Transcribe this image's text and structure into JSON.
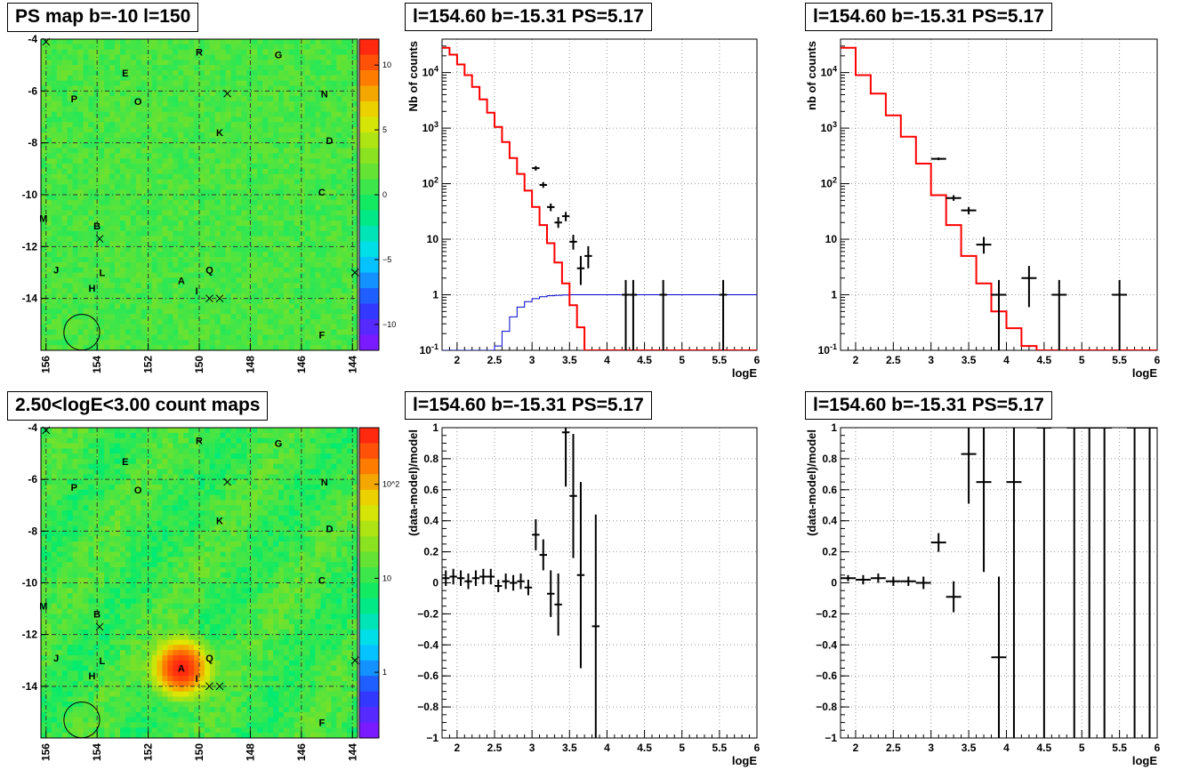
{
  "chart_data": [
    {
      "id": "ps_map",
      "type": "heatmap",
      "title": "PS map b=-10 l=150",
      "x_ticks": [
        "156",
        "154",
        "152",
        "150",
        "148",
        "146",
        "144"
      ],
      "y_ticks": [
        "-4",
        "-6",
        "-8",
        "-10",
        "-12",
        "-14"
      ],
      "xlim": [
        156.2,
        143.8
      ],
      "ylim": [
        -16,
        -4
      ],
      "z_ticks": [
        "10",
        "5",
        "0",
        "−5",
        "−10"
      ],
      "zlim": [
        -12,
        12
      ],
      "background_value": 1.0,
      "colors": {
        "grid": "#333333"
      },
      "labels": [
        {
          "text": "R",
          "l": 150.0,
          "b": -4.5
        },
        {
          "text": "G",
          "l": 146.9,
          "b": -4.6
        },
        {
          "text": "E",
          "l": 152.9,
          "b": -5.3
        },
        {
          "text": "P",
          "l": 154.9,
          "b": -6.3
        },
        {
          "text": "O",
          "l": 152.4,
          "b": -6.4
        },
        {
          "text": "N",
          "l": 145.1,
          "b": -6.1
        },
        {
          "text": "K",
          "l": 149.2,
          "b": -7.6
        },
        {
          "text": "D",
          "l": 144.9,
          "b": -7.9
        },
        {
          "text": "C",
          "l": 145.2,
          "b": -9.9
        },
        {
          "text": "M",
          "l": 156.1,
          "b": -10.9
        },
        {
          "text": "B",
          "l": 154.0,
          "b": -11.2
        },
        {
          "text": "J",
          "l": 155.6,
          "b": -12.9
        },
        {
          "text": "L",
          "l": 153.8,
          "b": -13.0
        },
        {
          "text": "Q",
          "l": 149.6,
          "b": -12.9
        },
        {
          "text": "A",
          "l": 150.7,
          "b": -13.3
        },
        {
          "text": "H",
          "l": 154.2,
          "b": -13.6
        },
        {
          "text": "I",
          "l": 150.1,
          "b": -13.7
        },
        {
          "text": "F",
          "l": 145.2,
          "b": -15.4
        }
      ],
      "crosses": [
        {
          "l": 156.0,
          "b": -4.1
        },
        {
          "l": 148.9,
          "b": -6.1
        },
        {
          "l": 153.9,
          "b": -11.7
        },
        {
          "l": 149.6,
          "b": -14.0
        },
        {
          "l": 149.2,
          "b": -14.0
        },
        {
          "l": 143.9,
          "b": -13.0
        }
      ],
      "circle": {
        "l": 154.6,
        "b": -15.3,
        "r": 0.7
      }
    },
    {
      "id": "spec1",
      "type": "line",
      "title": "l=154.60 b=-15.31 PS=5.17",
      "xlabel": "logE",
      "ylabel": "Nb of counts",
      "xlim": [
        1.8,
        6
      ],
      "ylim": [
        0.1,
        40000
      ],
      "yscale": "log",
      "x_ticks": [
        "2",
        "2.5",
        "3",
        "3.5",
        "4",
        "4.5",
        "5",
        "5.5",
        "6"
      ],
      "y_ticks": [
        "10^-1",
        "1",
        "10",
        "10^2",
        "10^3",
        "10^4"
      ],
      "grid": true,
      "bin_width": 0.1,
      "model_red": [
        28000,
        21000,
        14000,
        9000,
        5500,
        3300,
        1900,
        1050,
        560,
        290,
        150,
        75,
        38,
        18,
        8.5,
        3.8,
        1.6,
        0.65,
        0.26,
        0.1,
        0.1,
        0.1,
        0.1,
        0.1,
        0.1,
        0.1,
        0.1,
        0.1,
        0.1,
        0.1,
        0.1,
        0.1,
        0.1,
        0.1,
        0.1,
        0.1,
        0.1,
        0.1,
        0.1,
        0.1,
        0.1,
        0.1
      ],
      "model_blue": [
        0.1,
        0.1,
        0.1,
        0.1,
        0.1,
        0.1,
        0.1,
        0.12,
        0.22,
        0.4,
        0.6,
        0.75,
        0.85,
        0.92,
        0.96,
        0.98,
        0.99,
        1,
        1,
        1,
        1,
        1,
        1,
        1,
        1,
        1,
        1,
        1,
        1,
        1,
        1,
        1,
        1,
        1,
        1,
        1,
        1,
        1,
        1,
        1,
        1,
        1
      ],
      "data_points": [
        {
          "x": 3.05,
          "y": 190,
          "lo": 172,
          "hi": 208
        },
        {
          "x": 3.15,
          "y": 95,
          "lo": 84,
          "hi": 107
        },
        {
          "x": 3.25,
          "y": 38,
          "lo": 32,
          "hi": 44
        },
        {
          "x": 3.35,
          "y": 20,
          "lo": 16,
          "hi": 25
        },
        {
          "x": 3.45,
          "y": 26,
          "lo": 21,
          "hi": 31
        },
        {
          "x": 3.55,
          "y": 9,
          "lo": 6.5,
          "hi": 12
        },
        {
          "x": 3.65,
          "y": 3,
          "lo": 1.5,
          "hi": 5
        },
        {
          "x": 3.75,
          "y": 5,
          "lo": 3,
          "hi": 7.5
        },
        {
          "x": 4.25,
          "y": 1,
          "lo": 0.1,
          "hi": 1.85
        },
        {
          "x": 4.35,
          "y": 1,
          "lo": 0.1,
          "hi": 1.85
        },
        {
          "x": 4.75,
          "y": 1,
          "lo": 0.1,
          "hi": 1.85
        },
        {
          "x": 5.55,
          "y": 1,
          "lo": 0.1,
          "hi": 1.85
        }
      ],
      "colors": {
        "model": "#ff0000",
        "acceptance": "#0000cc",
        "data": "#000000"
      }
    },
    {
      "id": "spec2",
      "type": "line",
      "title": "l=154.60 b=-15.31 PS=5.17",
      "xlabel": "logE",
      "ylabel": "nb of counts",
      "xlim": [
        1.8,
        6
      ],
      "ylim": [
        0.1,
        40000
      ],
      "yscale": "log",
      "x_ticks": [
        "2",
        "2.5",
        "3",
        "3.5",
        "4",
        "4.5",
        "5",
        "5.5",
        "6"
      ],
      "y_ticks": [
        "10^-1",
        "1",
        "10",
        "10^2",
        "10^3",
        "10^4"
      ],
      "grid": true,
      "bin_width": 0.2,
      "model_red": [
        28000,
        9000,
        4200,
        1700,
        700,
        230,
        62,
        18,
        5,
        1.6,
        0.5,
        0.25,
        0.12,
        0.1,
        0.1,
        0.1,
        0.1,
        0.1,
        0.1,
        0.1,
        0.1
      ],
      "data_points": [
        {
          "x": 3.1,
          "y": 280,
          "lo": 265,
          "hi": 296
        },
        {
          "x": 3.3,
          "y": 55,
          "lo": 49,
          "hi": 62
        },
        {
          "x": 3.5,
          "y": 33,
          "lo": 28,
          "hi": 38
        },
        {
          "x": 3.7,
          "y": 8,
          "lo": 5.5,
          "hi": 11
        },
        {
          "x": 3.9,
          "y": 1,
          "lo": 0.1,
          "hi": 1.85
        },
        {
          "x": 4.3,
          "y": 2,
          "lo": 0.6,
          "hi": 3.3
        },
        {
          "x": 4.7,
          "y": 1,
          "lo": 0.1,
          "hi": 1.85
        },
        {
          "x": 5.5,
          "y": 1,
          "lo": 0.1,
          "hi": 1.85
        }
      ],
      "colors": {
        "model": "#ff0000",
        "data": "#000000"
      }
    },
    {
      "id": "count_map",
      "type": "heatmap",
      "title": "2.50<logE<3.00 count maps",
      "x_ticks": [
        "156",
        "154",
        "152",
        "150",
        "148",
        "146",
        "144"
      ],
      "y_ticks": [
        "-4",
        "-6",
        "-8",
        "-10",
        "-12",
        "-14"
      ],
      "xlim": [
        156.2,
        143.8
      ],
      "ylim": [
        -16,
        -4
      ],
      "z_ticks": [
        "10^2",
        "10",
        "1"
      ],
      "zlim": [
        0.2,
        400
      ],
      "zscale": "log",
      "background_value": 10,
      "source": {
        "l": 150.7,
        "b": -13.3,
        "peak": 350,
        "sigma": 0.5
      },
      "colors": {
        "grid": "#333333"
      },
      "labels": [
        {
          "text": "R",
          "l": 150.0,
          "b": -4.5
        },
        {
          "text": "G",
          "l": 146.9,
          "b": -4.6
        },
        {
          "text": "E",
          "l": 152.9,
          "b": -5.3
        },
        {
          "text": "P",
          "l": 154.9,
          "b": -6.3
        },
        {
          "text": "O",
          "l": 152.4,
          "b": -6.4
        },
        {
          "text": "N",
          "l": 145.1,
          "b": -6.1
        },
        {
          "text": "K",
          "l": 149.2,
          "b": -7.6
        },
        {
          "text": "D",
          "l": 144.9,
          "b": -7.9
        },
        {
          "text": "C",
          "l": 145.2,
          "b": -9.9
        },
        {
          "text": "M",
          "l": 156.1,
          "b": -10.9
        },
        {
          "text": "B",
          "l": 154.0,
          "b": -11.2
        },
        {
          "text": "J",
          "l": 155.6,
          "b": -12.9
        },
        {
          "text": "L",
          "l": 153.8,
          "b": -13.0
        },
        {
          "text": "Q",
          "l": 149.6,
          "b": -12.9
        },
        {
          "text": "A",
          "l": 150.7,
          "b": -13.3
        },
        {
          "text": "H",
          "l": 154.2,
          "b": -13.6
        },
        {
          "text": "I",
          "l": 150.1,
          "b": -13.7
        },
        {
          "text": "F",
          "l": 145.2,
          "b": -15.4
        }
      ],
      "crosses": [
        {
          "l": 156.0,
          "b": -4.1
        },
        {
          "l": 148.9,
          "b": -6.1
        },
        {
          "l": 153.9,
          "b": -11.7
        },
        {
          "l": 149.6,
          "b": -14.0
        },
        {
          "l": 149.2,
          "b": -14.0
        },
        {
          "l": 143.9,
          "b": -13.0
        }
      ],
      "circle": {
        "l": 154.6,
        "b": -15.3,
        "r": 0.7
      }
    },
    {
      "id": "resid1",
      "type": "scatter",
      "title": "l=154.60 b=-15.31 PS=5.17",
      "xlabel": "logE",
      "ylabel": "(data-model)/model",
      "xlim": [
        1.8,
        6
      ],
      "ylim": [
        -1,
        1
      ],
      "x_ticks": [
        "2",
        "2.5",
        "3",
        "3.5",
        "4",
        "4.5",
        "5",
        "5.5",
        "6"
      ],
      "y_ticks": [
        "−1",
        "−0.8",
        "−0.6",
        "−0.4",
        "−0.2",
        "0",
        "0.2",
        "0.4",
        "0.6",
        "0.8",
        "1"
      ],
      "grid": true,
      "half_width": 0.05,
      "points": [
        {
          "x": 1.85,
          "y": 0.03,
          "e": 0.05
        },
        {
          "x": 1.95,
          "y": 0.04,
          "e": 0.05
        },
        {
          "x": 2.05,
          "y": 0.03,
          "e": 0.05
        },
        {
          "x": 2.15,
          "y": 0.01,
          "e": 0.05
        },
        {
          "x": 2.25,
          "y": 0.03,
          "e": 0.05
        },
        {
          "x": 2.35,
          "y": 0.04,
          "e": 0.05
        },
        {
          "x": 2.45,
          "y": 0.04,
          "e": 0.05
        },
        {
          "x": 2.55,
          "y": -0.02,
          "e": 0.04
        },
        {
          "x": 2.65,
          "y": 0.01,
          "e": 0.05
        },
        {
          "x": 2.75,
          "y": 0.0,
          "e": 0.05
        },
        {
          "x": 2.85,
          "y": 0.01,
          "e": 0.05
        },
        {
          "x": 2.95,
          "y": -0.03,
          "e": 0.05
        },
        {
          "x": 3.05,
          "y": 0.31,
          "e": 0.1
        },
        {
          "x": 3.15,
          "y": 0.18,
          "e": 0.1
        },
        {
          "x": 3.25,
          "y": -0.07,
          "e": 0.15
        },
        {
          "x": 3.35,
          "y": -0.14,
          "e": 0.2
        },
        {
          "x": 3.45,
          "y": 0.97,
          "e": 0.35
        },
        {
          "x": 3.55,
          "y": 0.56,
          "e": 0.4
        },
        {
          "x": 3.65,
          "y": 0.05,
          "e": 0.6
        },
        {
          "x": 3.85,
          "y": -0.28,
          "e": 0.72
        }
      ],
      "colors": {
        "data": "#000000"
      }
    },
    {
      "id": "resid2",
      "type": "scatter",
      "title": "l=154.60 b=-15.31 PS=5.17",
      "xlabel": "logE",
      "ylabel": "(data-model)/model",
      "xlim": [
        1.8,
        6
      ],
      "ylim": [
        -1,
        1
      ],
      "x_ticks": [
        "2",
        "2.5",
        "3",
        "3.5",
        "4",
        "4.5",
        "5",
        "5.5",
        "6"
      ],
      "y_ticks": [
        "−1",
        "−0.8",
        "−0.6",
        "−0.4",
        "−0.2",
        "0",
        "0.2",
        "0.4",
        "0.6",
        "0.8",
        "1"
      ],
      "grid": true,
      "half_width": 0.1,
      "points": [
        {
          "x": 1.9,
          "y": 0.03,
          "e": 0.02
        },
        {
          "x": 2.1,
          "y": 0.02,
          "e": 0.03
        },
        {
          "x": 2.3,
          "y": 0.03,
          "e": 0.03
        },
        {
          "x": 2.5,
          "y": 0.01,
          "e": 0.03
        },
        {
          "x": 2.7,
          "y": 0.01,
          "e": 0.03
        },
        {
          "x": 2.9,
          "y": 0.0,
          "e": 0.04
        },
        {
          "x": 3.1,
          "y": 0.26,
          "e": 0.06
        },
        {
          "x": 3.3,
          "y": -0.09,
          "e": 0.1
        },
        {
          "x": 3.5,
          "y": 0.83,
          "e": 0.32
        },
        {
          "x": 3.7,
          "y": 0.65,
          "e": 0.58
        },
        {
          "x": 3.9,
          "y": -0.48,
          "e": 0.52
        },
        {
          "x": 4.1,
          "y": 0.65,
          "e": 1.8
        },
        {
          "x": 4.5,
          "y": 1,
          "e": 2.0
        },
        {
          "x": 4.9,
          "y": 1,
          "e": 2.0
        },
        {
          "x": 5.1,
          "y": 1,
          "e": 2.0
        },
        {
          "x": 5.3,
          "y": 1,
          "e": 2.0
        },
        {
          "x": 5.7,
          "y": 1,
          "e": 2.0
        },
        {
          "x": 5.9,
          "y": 1,
          "e": 2.0
        }
      ],
      "colors": {
        "data": "#000000"
      }
    }
  ]
}
